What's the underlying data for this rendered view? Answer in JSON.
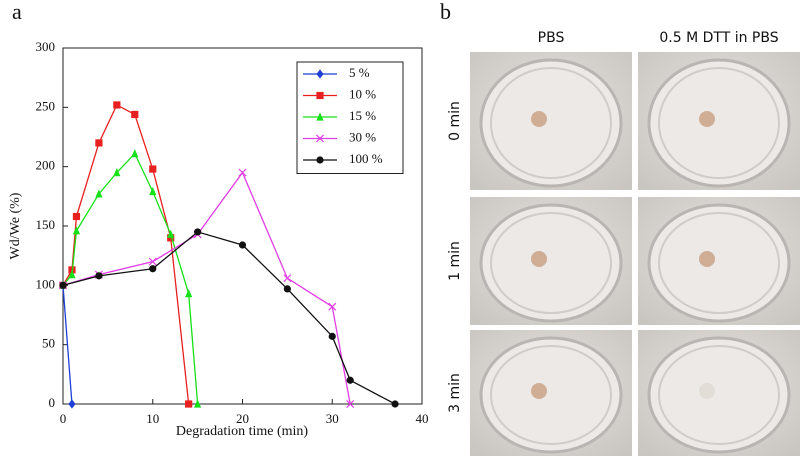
{
  "chart_data": {
    "type": "line",
    "panel_label": "a",
    "x_label": "Degradation time (min)",
    "y_label": "Wd/We (%)",
    "xlim": [
      0,
      40
    ],
    "xticks": [
      0,
      10,
      20,
      30,
      40
    ],
    "ylim": [
      0,
      300
    ],
    "yticks": [
      0,
      50,
      100,
      150,
      200,
      250,
      300
    ],
    "grid": false,
    "legend": "upper right",
    "series": [
      {
        "name": "5 %",
        "color": "#1f3fd6",
        "marker": "diamond",
        "x": [
          0,
          1
        ],
        "values": [
          100,
          0
        ]
      },
      {
        "name": "10 %",
        "color": "#e8201f",
        "marker": "square",
        "x": [
          0,
          1,
          1.5,
          4,
          6,
          8,
          10,
          12,
          14
        ],
        "values": [
          100,
          113,
          158,
          220,
          252,
          244,
          198,
          140,
          0
        ]
      },
      {
        "name": "15 %",
        "color": "#16e016",
        "marker": "triangle",
        "x": [
          0,
          1,
          1.5,
          4,
          6,
          8,
          10,
          12,
          14,
          15
        ],
        "values": [
          100,
          109,
          146,
          177,
          195,
          211,
          179,
          143,
          93,
          0
        ]
      },
      {
        "name": "30 %",
        "color": "#e23de6",
        "marker": "x",
        "x": [
          0,
          4,
          10,
          15,
          20,
          25,
          30,
          32
        ],
        "values": [
          100,
          109,
          120,
          143,
          195,
          106,
          82,
          0
        ]
      },
      {
        "name": "100 %",
        "color": "#111111",
        "marker": "circle",
        "x": [
          0,
          4,
          10,
          15,
          20,
          25,
          30,
          32,
          37
        ],
        "values": [
          100,
          108,
          114,
          145,
          134,
          97,
          57,
          20,
          0
        ]
      }
    ]
  },
  "panel_b": {
    "label": "b",
    "columns": [
      "PBS",
      "0.5 M DTT in PBS"
    ],
    "rows": [
      "0 min",
      "1 min",
      "3 min"
    ]
  }
}
